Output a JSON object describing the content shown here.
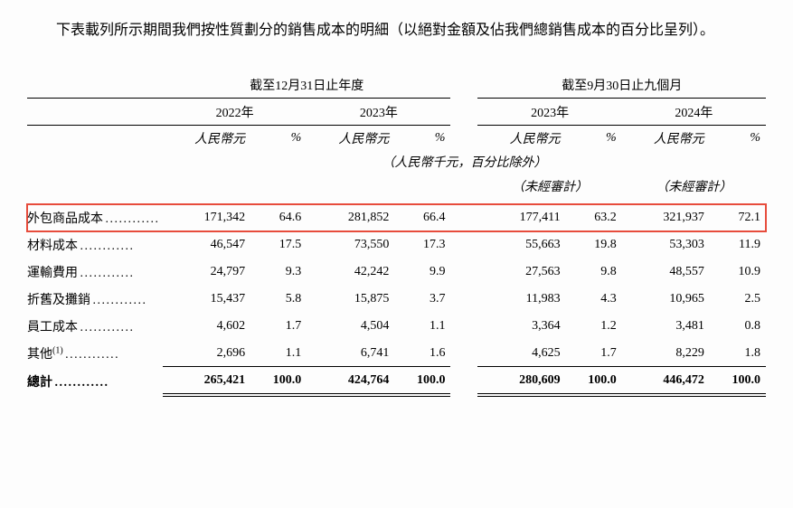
{
  "intro_text": "下表載列所示期間我們按性質劃分的銷售成本的明細（以絕對金額及佔我們總銷售成本的百分比呈列）。",
  "headers": {
    "group1": "截至12月31日止年度",
    "group2": "截至9月30日止九個月",
    "y2022": "2022年",
    "y2023": "2023年",
    "y2023b": "2023年",
    "y2024": "2024年",
    "currency": "人民幣元",
    "pct": "%",
    "unit_note": "（人民幣千元，百分比除外）",
    "unaudited": "（未經審計）"
  },
  "rows": [
    {
      "label": "外包商品成本",
      "vals": [
        "171,342",
        "64.6",
        "281,852",
        "66.4",
        "177,411",
        "63.2",
        "321,937",
        "72.1"
      ],
      "highlight": true
    },
    {
      "label": "材料成本",
      "vals": [
        "46,547",
        "17.5",
        "73,550",
        "17.3",
        "55,663",
        "19.8",
        "53,303",
        "11.9"
      ]
    },
    {
      "label": "運輸費用",
      "vals": [
        "24,797",
        "9.3",
        "42,242",
        "9.9",
        "27,563",
        "9.8",
        "48,557",
        "10.9"
      ]
    },
    {
      "label": "折舊及攤銷",
      "vals": [
        "15,437",
        "5.8",
        "15,875",
        "3.7",
        "11,983",
        "4.3",
        "10,965",
        "2.5"
      ]
    },
    {
      "label": "員工成本",
      "vals": [
        "4,602",
        "1.7",
        "4,504",
        "1.1",
        "3,364",
        "1.2",
        "3,481",
        "0.8"
      ]
    },
    {
      "label": "其他",
      "sup": "(1)",
      "vals": [
        "2,696",
        "1.1",
        "6,741",
        "1.6",
        "4,625",
        "1.7",
        "8,229",
        "1.8"
      ],
      "underline": true
    }
  ],
  "total": {
    "label": "總計",
    "vals": [
      "265,421",
      "100.0",
      "424,764",
      "100.0",
      "280,609",
      "100.0",
      "446,472",
      "100.0"
    ]
  },
  "colors": {
    "highlight_border": "#e74c3c",
    "text": "#000000",
    "bg": "#fdfdfd"
  }
}
